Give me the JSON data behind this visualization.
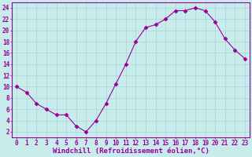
{
  "x": [
    0,
    1,
    2,
    3,
    4,
    5,
    6,
    7,
    8,
    9,
    10,
    11,
    12,
    13,
    14,
    15,
    16,
    17,
    18,
    19,
    20,
    21,
    22,
    23
  ],
  "y": [
    10,
    9,
    7,
    6,
    5,
    5,
    3,
    2,
    4,
    7,
    10.5,
    14,
    18,
    20.5,
    21,
    22,
    23.5,
    23.5,
    24,
    23.5,
    21.5,
    18.5,
    16.5,
    15
  ],
  "line_color": "#990099",
  "marker": "D",
  "markersize": 2.5,
  "linewidth": 0.8,
  "background_color": "#c8ecec",
  "grid_color": "#aad4d4",
  "xlabel": "Windchill (Refroidissement éolien,°C)",
  "xlabel_fontsize": 6.5,
  "xlabel_color": "#990099",
  "ylabel_ticks": [
    2,
    4,
    6,
    8,
    10,
    12,
    14,
    16,
    18,
    20,
    22,
    24
  ],
  "xlim": [
    -0.5,
    23.5
  ],
  "ylim": [
    1,
    25
  ],
  "tick_fontsize": 5.5,
  "tick_color": "#990099"
}
